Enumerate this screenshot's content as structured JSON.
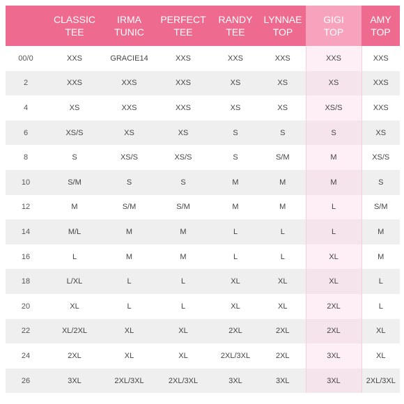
{
  "table": {
    "columns": [
      {
        "line1": "",
        "line2": ""
      },
      {
        "line1": "CLASSIC",
        "line2": "TEE"
      },
      {
        "line1": "IRMA",
        "line2": "TUNIC"
      },
      {
        "line1": "PERFECT",
        "line2": "TEE"
      },
      {
        "line1": "RANDY",
        "line2": "TEE"
      },
      {
        "line1": "LYNNAE",
        "line2": "TOP"
      },
      {
        "line1": "GIGI",
        "line2": "TOP"
      },
      {
        "line1": "AMY",
        "line2": "TOP"
      }
    ],
    "rows": [
      [
        "00/0",
        "XXS",
        "GRACIE14",
        "XXS",
        "XXS",
        "XXS",
        "XXS",
        "XXS"
      ],
      [
        "2",
        "XXS",
        "XXS",
        "XXS",
        "XS",
        "XS",
        "XS",
        "XXS"
      ],
      [
        "4",
        "XS",
        "XXS",
        "XXS",
        "XS",
        "XS",
        "XS/S",
        "XXS"
      ],
      [
        "6",
        "XS/S",
        "XS",
        "XS",
        "S",
        "S",
        "S",
        "XS"
      ],
      [
        "8",
        "S",
        "XS/S",
        "XS/S",
        "S",
        "S/M",
        "M",
        "XS/S"
      ],
      [
        "10",
        "S/M",
        "S",
        "S",
        "M",
        "M",
        "M",
        "S"
      ],
      [
        "12",
        "M",
        "S/M",
        "S/M",
        "M",
        "M",
        "L",
        "S/M"
      ],
      [
        "14",
        "M/L",
        "M",
        "M",
        "L",
        "L",
        "L",
        "M"
      ],
      [
        "16",
        "L",
        "M",
        "M",
        "L",
        "L",
        "XL",
        "M"
      ],
      [
        "18",
        "L/XL",
        "L",
        "L",
        "XL",
        "XL",
        "XL",
        "L"
      ],
      [
        "20",
        "XL",
        "L",
        "L",
        "XL",
        "XL",
        "2XL",
        "L"
      ],
      [
        "22",
        "XL/2XL",
        "XL",
        "XL",
        "2XL",
        "2XL",
        "2XL",
        "XL"
      ],
      [
        "24",
        "2XL",
        "XL",
        "XL",
        "2XL/3XL",
        "2XL",
        "3XL",
        "XL"
      ],
      [
        "26",
        "3XL",
        "2XL/3XL",
        "2XL/3XL",
        "3XL",
        "3XL",
        "3XL",
        "2XL/3XL"
      ]
    ]
  },
  "colors": {
    "header_bg": "#ee6a8f",
    "gigi_header_bg": "#f7a3bd",
    "row_alt_bg": "#efefef",
    "gigi_highlight": "#fdeff5",
    "text": "#444444"
  }
}
